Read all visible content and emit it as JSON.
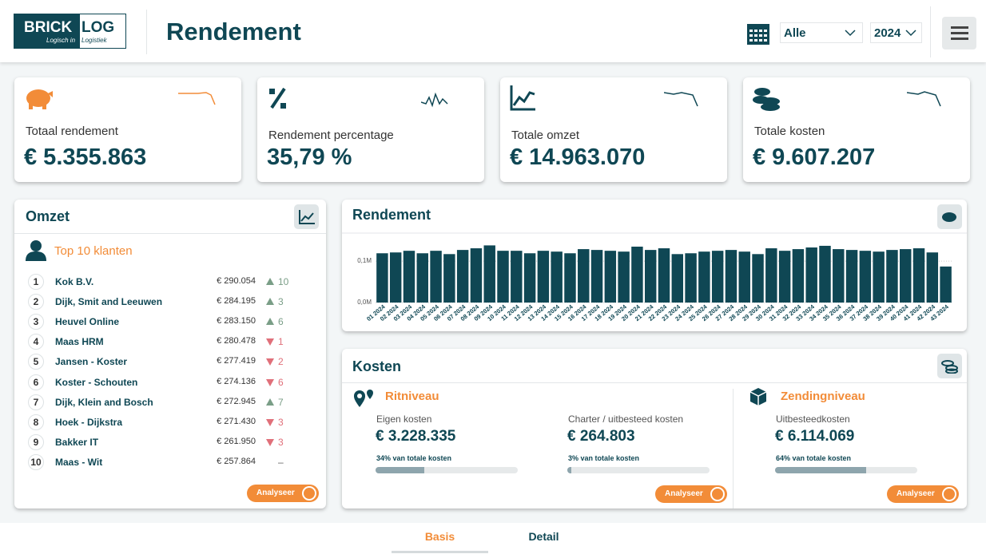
{
  "header": {
    "logo_main": "BRICK",
    "logo_sub": "LOG",
    "tagline_1": "Logisch in",
    "tagline_2": "Logistiek",
    "title": "Rendement",
    "filter_period": "Alle",
    "filter_year": "2024"
  },
  "kpis": [
    {
      "label": "Totaal rendement",
      "value": "€ 5.355.863"
    },
    {
      "label": "Rendement percentage",
      "value": "35,79 %"
    },
    {
      "label": "Totale omzet",
      "value": "€ 14.963.070"
    },
    {
      "label": "Totale kosten",
      "value": "€ 9.607.207"
    }
  ],
  "omzet": {
    "title": "Omzet",
    "subtitle": "Top 10 klanten",
    "button": "Analyseer",
    "rows": [
      {
        "rank": 1,
        "name": "Kok B.V.",
        "amount": "€ 290.054",
        "change": 10,
        "direction": "up"
      },
      {
        "rank": 2,
        "name": "Dijk, Smit and Leeuwen",
        "amount": "€ 284.195",
        "change": 3,
        "direction": "up"
      },
      {
        "rank": 3,
        "name": "Heuvel Online",
        "amount": "€ 283.150",
        "change": 6,
        "direction": "up"
      },
      {
        "rank": 4,
        "name": "Maas HRM",
        "amount": "€ 280.478",
        "change": 1,
        "direction": "down"
      },
      {
        "rank": 5,
        "name": "Jansen - Koster",
        "amount": "€ 277.419",
        "change": 2,
        "direction": "down"
      },
      {
        "rank": 6,
        "name": "Koster - Schouten",
        "amount": "€ 274.136",
        "change": 6,
        "direction": "down"
      },
      {
        "rank": 7,
        "name": "Dijk, Klein and Bosch",
        "amount": "€ 272.945",
        "change": 7,
        "direction": "up"
      },
      {
        "rank": 8,
        "name": "Hoek - Dijkstra",
        "amount": "€ 271.430",
        "change": 3,
        "direction": "down"
      },
      {
        "rank": 9,
        "name": "Bakker IT",
        "amount": "€ 261.950",
        "change": 3,
        "direction": "down"
      },
      {
        "rank": 10,
        "name": "Maas - Wit",
        "amount": "€ 257.864",
        "change": "–",
        "direction": "none"
      }
    ]
  },
  "rendement_chart": {
    "type": "bar",
    "title": "Rendement",
    "color": "#0f4754",
    "categories": [
      "01 2024",
      "02 2024",
      "03 2024",
      "04 2024",
      "05 2024",
      "06 2024",
      "07 2024",
      "08 2024",
      "09 2024",
      "10 2024",
      "11 2024",
      "12 2024",
      "13 2024",
      "14 2024",
      "15 2024",
      "16 2024",
      "17 2024",
      "18 2024",
      "19 2024",
      "20 2024",
      "21 2024",
      "22 2024",
      "23 2024",
      "24 2024",
      "25 2024",
      "26 2024",
      "27 2024",
      "28 2024",
      "29 2024",
      "30 2024",
      "31 2024",
      "32 2024",
      "33 2024",
      "34 2024",
      "35 2024",
      "36 2024",
      "37 2024",
      "38 2024",
      "39 2024",
      "40 2024",
      "41 2024",
      "42 2024",
      "43 2024"
    ],
    "values": [
      119000,
      121000,
      125000,
      119000,
      125000,
      117000,
      127000,
      131000,
      138000,
      125000,
      125000,
      119000,
      125000,
      123000,
      119000,
      129000,
      127000,
      125000,
      123000,
      135000,
      127000,
      131000,
      117000,
      119000,
      123000,
      125000,
      127000,
      123000,
      117000,
      131000,
      125000,
      129000,
      133000,
      137000,
      129000,
      127000,
      125000,
      123000,
      127000,
      129000,
      131000,
      121000,
      87000
    ],
    "ylim": [
      0,
      160000
    ],
    "yticks": [
      {
        "value": 0,
        "label": "0,0M"
      },
      {
        "value": 100000,
        "label": "0,1M"
      }
    ]
  },
  "kosten": {
    "title": "Kosten",
    "sections": [
      {
        "title": "Ritniveau",
        "button": "Analyseer",
        "items": [
          {
            "label": "Eigen kosten",
            "value": "€ 3.228.335",
            "share_label": "34% van totale kosten",
            "share": 34
          },
          {
            "label": "Charter / uitbesteed kosten",
            "value": "€ 264.803",
            "share_label": "3% van totale kosten",
            "share": 3
          }
        ]
      },
      {
        "title": "Zendingniveau",
        "button": "Analyseer",
        "items": [
          {
            "label": "Uitbesteedkosten",
            "value": "€ 6.114.069",
            "share_label": "64% van totale kosten",
            "share": 64
          }
        ]
      }
    ]
  },
  "tabs": [
    "Basis",
    "Detail"
  ],
  "active_tab": 0
}
